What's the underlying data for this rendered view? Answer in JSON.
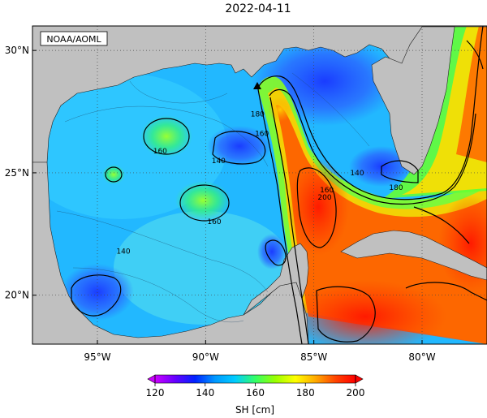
{
  "title": "2022-04-11",
  "credit": "NOAA/AOML",
  "lat_labels": [
    {
      "value": 30,
      "text": "30°N"
    },
    {
      "value": 25,
      "text": "25°N"
    },
    {
      "value": 20,
      "text": "20°N"
    }
  ],
  "lon_labels": [
    {
      "value": -95,
      "text": "95°W"
    },
    {
      "value": -90,
      "text": "90°W"
    },
    {
      "value": -85,
      "text": "85°W"
    },
    {
      "value": -80,
      "text": "80°W"
    }
  ],
  "extent": {
    "lon_min": -98.0,
    "lon_max": -77.0,
    "lat_min": 18.0,
    "lat_max": 31.0
  },
  "contour_labels": [
    {
      "text": "160",
      "lon": -92.1,
      "lat": 25.9
    },
    {
      "text": "160",
      "lon": -89.6,
      "lat": 23.0
    },
    {
      "text": "140",
      "lon": -89.4,
      "lat": 25.5
    },
    {
      "text": "180",
      "lon": -87.6,
      "lat": 27.4
    },
    {
      "text": "160",
      "lon": -87.4,
      "lat": 26.6
    },
    {
      "text": "200",
      "lon": -84.5,
      "lat": 24.0
    },
    {
      "text": "160",
      "lon": -84.4,
      "lat": 24.3
    },
    {
      "text": "180",
      "lon": -81.2,
      "lat": 24.4
    },
    {
      "text": "140",
      "lon": -83.0,
      "lat": 25.0
    },
    {
      "text": "140",
      "lon": -93.8,
      "lat": 21.8
    }
  ],
  "colorbar": {
    "min": 120,
    "max": 200,
    "ticks": [
      120,
      140,
      160,
      180,
      200
    ],
    "tick_labels": [
      "120",
      "140",
      "160",
      "180",
      "200"
    ],
    "label": "SH [cm]",
    "colors": [
      "#cc00ff",
      "#6600ff",
      "#0022ff",
      "#0099ff",
      "#00ccff",
      "#33ff66",
      "#99ff00",
      "#ffff00",
      "#ffaa00",
      "#ff4400",
      "#ff0000"
    ]
  },
  "colors": {
    "land": "#c0c0c0",
    "contour": "#000000",
    "grid": "#444444"
  }
}
